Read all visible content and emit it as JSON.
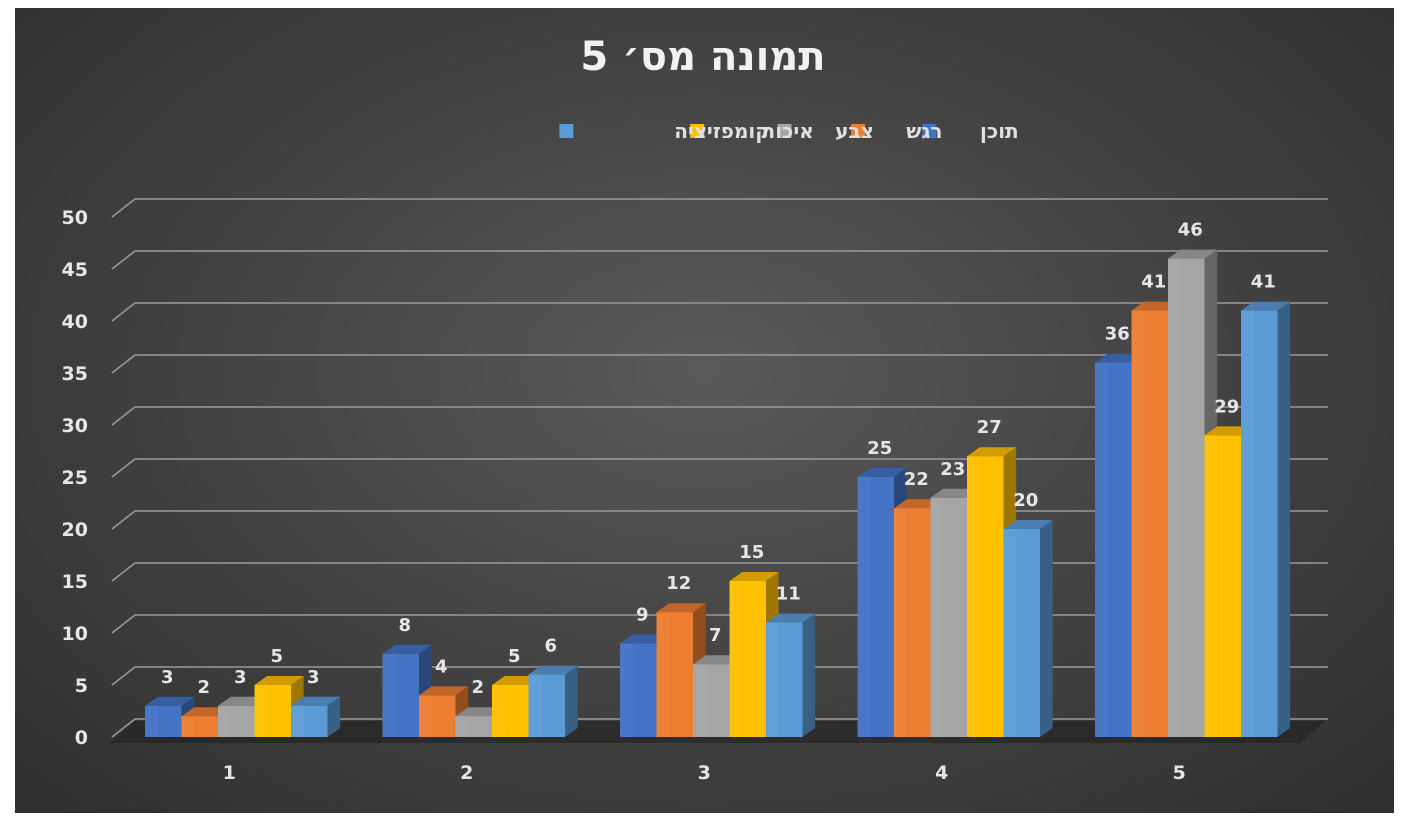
{
  "chart_data": {
    "type": "bar",
    "title": "תמונה מס׳ 5",
    "categories": [
      "1",
      "2",
      "3",
      "4",
      "5"
    ],
    "series": [
      {
        "name": "תוכן",
        "color": "#4472c4",
        "values": [
          3,
          8,
          9,
          25,
          36
        ]
      },
      {
        "name": "רגש",
        "color": "#ed7d31",
        "values": [
          2,
          4,
          12,
          22,
          41
        ]
      },
      {
        "name": "צבע",
        "color": "#a5a5a5",
        "values": [
          3,
          2,
          7,
          23,
          46
        ]
      },
      {
        "name": "איכות",
        "color": "#ffc000",
        "values": [
          5,
          5,
          15,
          27,
          29
        ]
      },
      {
        "name": "קומפזיציה",
        "color": "#5b9bd5",
        "values": [
          3,
          6,
          11,
          20,
          41
        ]
      }
    ],
    "y_ticks": [
      0,
      5,
      10,
      15,
      20,
      25,
      30,
      35,
      40,
      45,
      50
    ],
    "ylim": [
      0,
      50
    ],
    "xlabel": "",
    "ylabel": "",
    "grid": true,
    "legend_position": "top",
    "style": "3d-clustered-column"
  }
}
